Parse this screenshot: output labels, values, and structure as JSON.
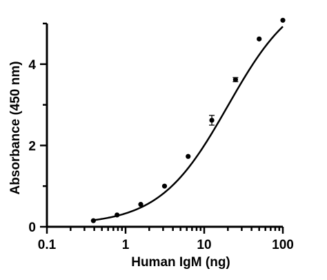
{
  "chart_data": {
    "type": "scatter",
    "x_scale": "log",
    "xlim": [
      0.1,
      100
    ],
    "ylim": [
      0,
      5
    ],
    "xlabel": "Human IgM (ng)",
    "ylabel": "Absorbance (450 nm)",
    "x_ticks": [
      0.1,
      1,
      10,
      100
    ],
    "x_tick_labels": [
      "0.1",
      "1",
      "10",
      "100"
    ],
    "y_ticks": [
      0,
      2,
      4
    ],
    "y_tick_labels": [
      "0",
      "2",
      "4"
    ],
    "y_minor_ticks": [
      1,
      3,
      5
    ],
    "grid": false,
    "points": [
      {
        "x": 0.39,
        "y": 0.15
      },
      {
        "x": 0.78,
        "y": 0.29
      },
      {
        "x": 1.56,
        "y": 0.55
      },
      {
        "x": 3.13,
        "y": 1.0
      },
      {
        "x": 6.25,
        "y": 1.73
      },
      {
        "x": 12.5,
        "y": 2.62,
        "err": 0.12
      },
      {
        "x": 25,
        "y": 3.62,
        "err": 0.05
      },
      {
        "x": 50,
        "y": 4.62
      },
      {
        "x": 100,
        "y": 5.08
      }
    ],
    "fit": {
      "model": "4PL",
      "bottom": 0.05,
      "top": 5.9,
      "ec50": 20,
      "hill": 1.0,
      "x_range": [
        0.39,
        100
      ]
    }
  }
}
